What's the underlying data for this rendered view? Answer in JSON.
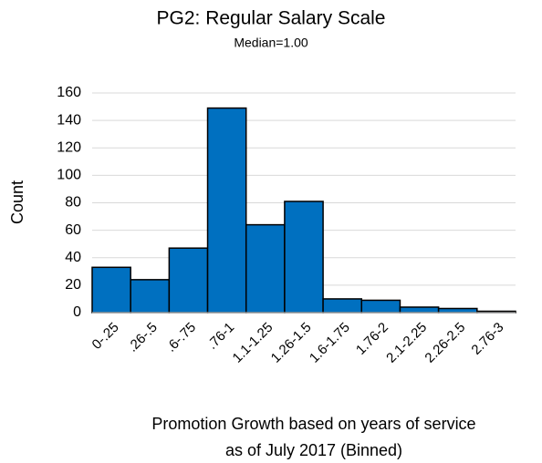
{
  "chart_data": {
    "type": "bar",
    "title": "PG2: Regular Salary Scale",
    "subtitle": "Median=1.00",
    "ylabel": "Count",
    "xlabel": [
      "Promotion Growth based on years of service",
      "as of July 2017 (Binned)"
    ],
    "categories": [
      "0-.25",
      ".26-.5",
      ".6-.75",
      ".76-1",
      "1.1-1.25",
      "1.26-1.5",
      "1.6-1.75",
      "1.76-2",
      "2.1-2.25",
      "2.26-2.5",
      "2.76-3"
    ],
    "values": [
      33,
      24,
      47,
      149,
      64,
      81,
      10,
      9,
      4,
      3,
      1
    ],
    "color": "#0070c0",
    "ylim": [
      0,
      160
    ],
    "yticks": [
      0,
      20,
      40,
      60,
      80,
      100,
      120,
      140,
      160
    ],
    "grid": true
  }
}
